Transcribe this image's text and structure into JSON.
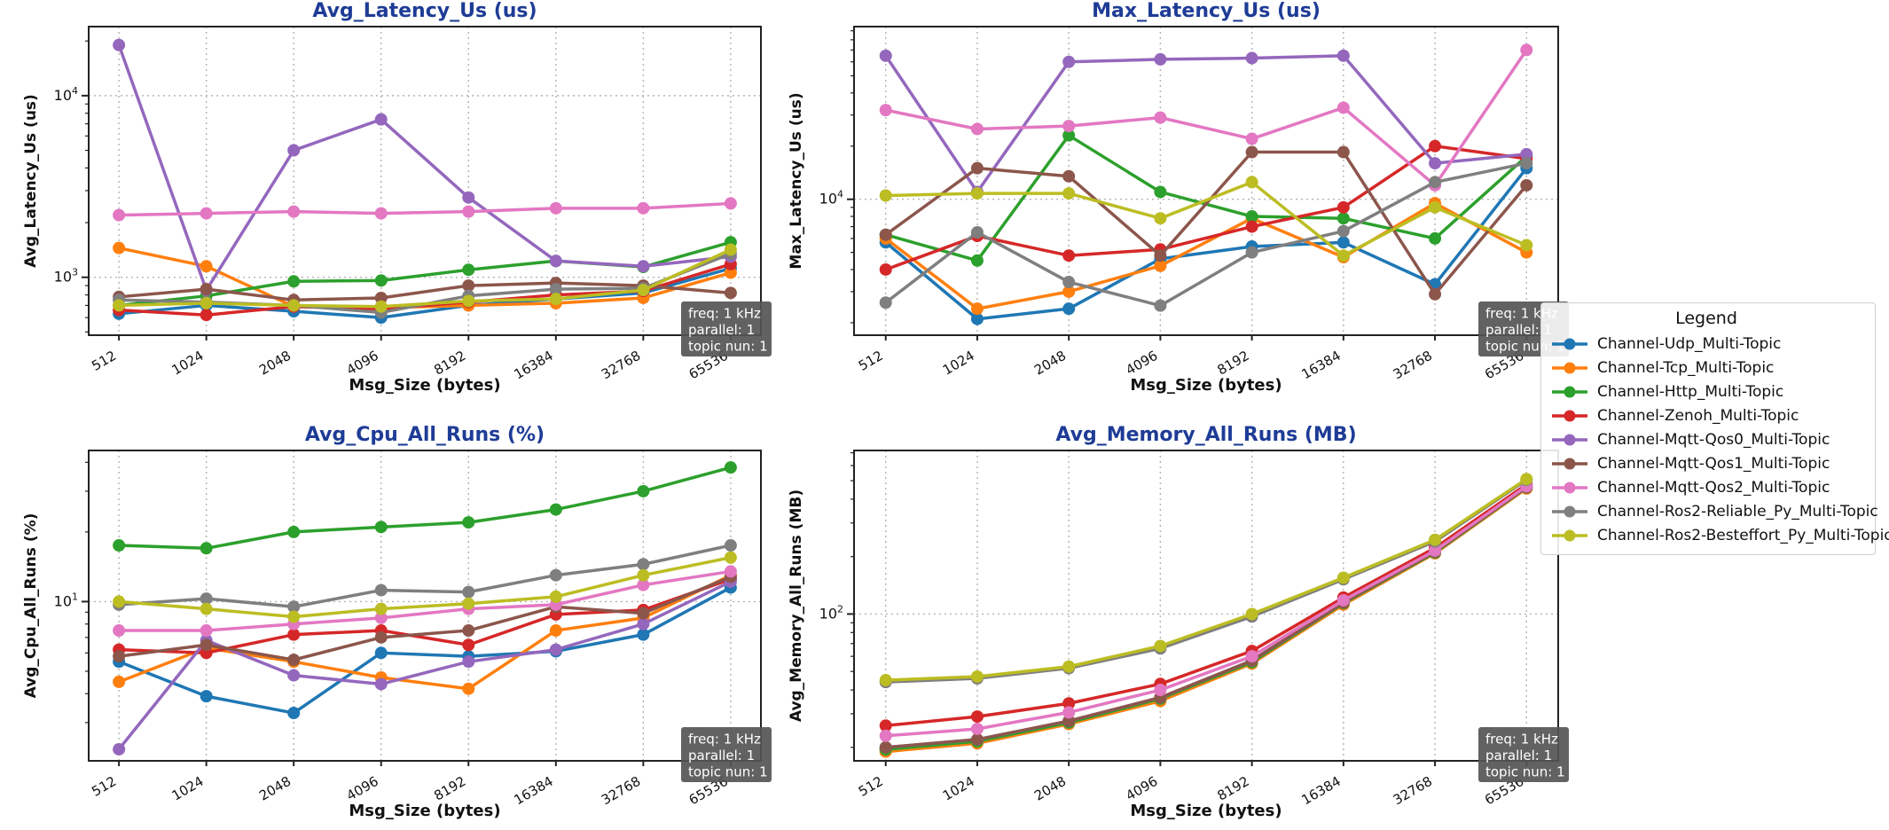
{
  "figure": {
    "background": "#ffffff",
    "title_color": "#1e3c96",
    "grid_color": "#b3b3b3",
    "spine_color": "#222222",
    "info_box": {
      "lines": [
        "freq: 1 kHz",
        "parallel: 1",
        "topic nun: 1"
      ],
      "bg": "#555555",
      "text_color": "#ffffff"
    },
    "legend": {
      "title": "Legend",
      "entries": [
        {
          "label": "Channel-Udp_Multi-Topic",
          "color": "#1f77b4"
        },
        {
          "label": "Channel-Tcp_Multi-Topic",
          "color": "#ff7f0e"
        },
        {
          "label": "Channel-Http_Multi-Topic",
          "color": "#2ca02c"
        },
        {
          "label": "Channel-Zenoh_Multi-Topic",
          "color": "#d62728"
        },
        {
          "label": "Channel-Mqtt-Qos0_Multi-Topic",
          "color": "#9467bd"
        },
        {
          "label": "Channel-Mqtt-Qos1_Multi-Topic",
          "color": "#8c564b"
        },
        {
          "label": "Channel-Mqtt-Qos2_Multi-Topic",
          "color": "#e377c2"
        },
        {
          "label": "Channel-Ros2-Reliable_Py_Multi-Topic",
          "color": "#7f7f7f"
        },
        {
          "label": "Channel-Ros2-Besteffort_Py_Multi-Topic",
          "color": "#bcbd22"
        }
      ]
    }
  },
  "chart_data": [
    {
      "type": "line",
      "title": "Avg_Latency_Us  (us)",
      "xlabel": "Msg_Size (bytes)",
      "ylabel": "Avg_Latency_Us (us)",
      "x_categories": [
        "512",
        "1024",
        "2048",
        "4096",
        "8192",
        "16384",
        "32768",
        "65536"
      ],
      "yscale": "log",
      "ylim": [
        480,
        24000
      ],
      "y_major_ticks": [
        1000,
        10000
      ],
      "grid": true,
      "legend_position": "outside-right",
      "series": [
        {
          "name": "Channel-Udp_Multi-Topic",
          "color": "#1f77b4",
          "values": [
            630,
            700,
            650,
            600,
            700,
            760,
            820,
            1120
          ]
        },
        {
          "name": "Channel-Tcp_Multi-Topic",
          "color": "#ff7f0e",
          "values": [
            1450,
            1150,
            690,
            680,
            700,
            720,
            770,
            1060
          ]
        },
        {
          "name": "Channel-Http_Multi-Topic",
          "color": "#2ca02c",
          "values": [
            700,
            790,
            950,
            960,
            1100,
            1230,
            1140,
            1560
          ]
        },
        {
          "name": "Channel-Zenoh_Multi-Topic",
          "color": "#d62728",
          "values": [
            660,
            620,
            690,
            670,
            730,
            800,
            840,
            1180
          ]
        },
        {
          "name": "Channel-Mqtt-Qos0_Multi-Topic",
          "color": "#9467bd",
          "values": [
            19000,
            850,
            5000,
            7400,
            2750,
            1230,
            1150,
            1300
          ]
        },
        {
          "name": "Channel-Mqtt-Qos1_Multi-Topic",
          "color": "#8c564b",
          "values": [
            780,
            860,
            750,
            770,
            900,
            930,
            900,
            820
          ]
        },
        {
          "name": "Channel-Mqtt-Qos2_Multi-Topic",
          "color": "#e377c2",
          "values": [
            2200,
            2250,
            2300,
            2250,
            2300,
            2400,
            2400,
            2550
          ]
        },
        {
          "name": "Channel-Ros2-Reliable_Py_Multi-Topic",
          "color": "#7f7f7f",
          "values": [
            750,
            730,
            700,
            640,
            790,
            860,
            870,
            1350
          ]
        },
        {
          "name": "Channel-Ros2-Besteffort_Py_Multi-Topic",
          "color": "#bcbd22",
          "values": [
            700,
            720,
            700,
            690,
            740,
            760,
            850,
            1420
          ]
        }
      ]
    },
    {
      "type": "line",
      "title": "Max_Latency_Us  (us)",
      "xlabel": "Msg_Size (bytes)",
      "ylabel": "Max_Latency_Us (us)",
      "x_categories": [
        "512",
        "1024",
        "2048",
        "4096",
        "8192",
        "16384",
        "32768",
        "65536"
      ],
      "yscale": "log",
      "ylim": [
        1700,
        95000
      ],
      "y_major_ticks": [
        10000
      ],
      "grid": true,
      "series": [
        {
          "name": "Channel-Udp_Multi-Topic",
          "color": "#1f77b4",
          "values": [
            5700,
            2100,
            2400,
            4600,
            5400,
            5700,
            3300,
            15000
          ]
        },
        {
          "name": "Channel-Tcp_Multi-Topic",
          "color": "#ff7f0e",
          "values": [
            6000,
            2400,
            3000,
            4200,
            7800,
            4700,
            9500,
            5000
          ]
        },
        {
          "name": "Channel-Http_Multi-Topic",
          "color": "#2ca02c",
          "values": [
            6300,
            4500,
            23000,
            11000,
            8000,
            7800,
            6000,
            17500
          ]
        },
        {
          "name": "Channel-Zenoh_Multi-Topic",
          "color": "#d62728",
          "values": [
            4000,
            6200,
            4800,
            5200,
            7000,
            9000,
            20000,
            17000
          ]
        },
        {
          "name": "Channel-Mqtt-Qos0_Multi-Topic",
          "color": "#9467bd",
          "values": [
            65000,
            11000,
            60000,
            62000,
            63000,
            65000,
            16000,
            18000
          ]
        },
        {
          "name": "Channel-Mqtt-Qos1_Multi-Topic",
          "color": "#8c564b",
          "values": [
            6300,
            15000,
            13500,
            4800,
            18500,
            18500,
            2900,
            12000
          ]
        },
        {
          "name": "Channel-Mqtt-Qos2_Multi-Topic",
          "color": "#e377c2",
          "values": [
            32000,
            25000,
            26000,
            29000,
            22000,
            33000,
            12000,
            70000
          ]
        },
        {
          "name": "Channel-Ros2-Reliable_Py_Multi-Topic",
          "color": "#7f7f7f",
          "values": [
            2600,
            6500,
            3400,
            2500,
            5000,
            6600,
            12500,
            16000
          ]
        },
        {
          "name": "Channel-Ros2-Besteffort_Py_Multi-Topic",
          "color": "#bcbd22",
          "values": [
            10500,
            10800,
            10800,
            7800,
            12500,
            4800,
            9000,
            5500
          ]
        }
      ]
    },
    {
      "type": "line",
      "title": "Avg_Cpu_All_Runs  (%)",
      "xlabel": "Msg_Size (bytes)",
      "ylabel": "Avg_Cpu_All_Runs (%)",
      "x_categories": [
        "512",
        "1024",
        "2048",
        "4096",
        "8192",
        "16384",
        "32768",
        "65536"
      ],
      "yscale": "log",
      "ylim": [
        2.05,
        45
      ],
      "y_major_ticks": [
        10
      ],
      "grid": true,
      "series": [
        {
          "name": "Channel-Udp_Multi-Topic",
          "color": "#1f77b4",
          "values": [
            5.5,
            3.9,
            3.3,
            6.0,
            5.8,
            6.1,
            7.2,
            11.5
          ]
        },
        {
          "name": "Channel-Tcp_Multi-Topic",
          "color": "#ff7f0e",
          "values": [
            4.5,
            6.3,
            5.5,
            4.7,
            4.2,
            7.5,
            8.5,
            13
          ]
        },
        {
          "name": "Channel-Http_Multi-Topic",
          "color": "#2ca02c",
          "values": [
            17.5,
            17,
            20,
            21,
            22,
            25,
            30,
            38
          ]
        },
        {
          "name": "Channel-Zenoh_Multi-Topic",
          "color": "#d62728",
          "values": [
            6.2,
            6.0,
            7.2,
            7.5,
            6.5,
            8.8,
            9.2,
            12.5
          ]
        },
        {
          "name": "Channel-Mqtt-Qos0_Multi-Topic",
          "color": "#9467bd",
          "values": [
            2.3,
            6.8,
            4.8,
            4.4,
            5.5,
            6.2,
            8.0,
            12.2
          ]
        },
        {
          "name": "Channel-Mqtt-Qos1_Multi-Topic",
          "color": "#8c564b",
          "values": [
            5.8,
            6.5,
            5.6,
            7.0,
            7.5,
            9.5,
            8.9,
            12.8
          ]
        },
        {
          "name": "Channel-Mqtt-Qos2_Multi-Topic",
          "color": "#e377c2",
          "values": [
            7.5,
            7.5,
            8.0,
            8.5,
            9.3,
            9.7,
            11.8,
            13.5
          ]
        },
        {
          "name": "Channel-Ros2-Reliable_Py_Multi-Topic",
          "color": "#7f7f7f",
          "values": [
            9.7,
            10.3,
            9.5,
            11.2,
            11.0,
            13.0,
            14.5,
            17.5
          ]
        },
        {
          "name": "Channel-Ros2-Besteffort_Py_Multi-Topic",
          "color": "#bcbd22",
          "values": [
            10.0,
            9.3,
            8.6,
            9.3,
            9.8,
            10.5,
            13.0,
            15.5
          ]
        }
      ]
    },
    {
      "type": "line",
      "title": "Avg_Memory_All_Runs  (MB)",
      "xlabel": "Msg_Size (bytes)",
      "ylabel": "Avg_Memory_All_Runs (MB)",
      "x_categories": [
        "512",
        "1024",
        "2048",
        "4096",
        "8192",
        "16384",
        "32768",
        "65536"
      ],
      "yscale": "log",
      "ylim": [
        17,
        720
      ],
      "y_major_ticks": [
        100
      ],
      "grid": true,
      "series": [
        {
          "name": "Channel-Udp_Multi-Topic",
          "color": "#1f77b4",
          "values": [
            19.5,
            21.5,
            27,
            36,
            57,
            115,
            212,
            462
          ]
        },
        {
          "name": "Channel-Tcp_Multi-Topic",
          "color": "#ff7f0e",
          "values": [
            19,
            21,
            26.5,
            35,
            55,
            112,
            208,
            455
          ]
        },
        {
          "name": "Channel-Http_Multi-Topic",
          "color": "#2ca02c",
          "values": [
            19.5,
            21.5,
            27,
            36,
            56,
            114,
            210,
            460
          ]
        },
        {
          "name": "Channel-Zenoh_Multi-Topic",
          "color": "#d62728",
          "values": [
            26,
            29,
            34,
            43,
            64,
            122,
            222,
            478
          ]
        },
        {
          "name": "Channel-Mqtt-Qos0_Multi-Topic",
          "color": "#9467bd",
          "values": [
            20,
            22,
            27.5,
            36.5,
            57,
            115,
            212,
            462
          ]
        },
        {
          "name": "Channel-Mqtt-Qos1_Multi-Topic",
          "color": "#8c564b",
          "values": [
            20,
            22,
            27.5,
            36.5,
            57,
            115,
            212,
            462
          ]
        },
        {
          "name": "Channel-Mqtt-Qos2_Multi-Topic",
          "color": "#e377c2",
          "values": [
            23,
            25,
            30.5,
            40,
            60,
            118,
            215,
            468
          ]
        },
        {
          "name": "Channel-Ros2-Reliable_Py_Multi-Topic",
          "color": "#7f7f7f",
          "values": [
            44,
            46,
            52,
            66,
            97,
            152,
            240,
            505
          ]
        },
        {
          "name": "Channel-Ros2-Besteffort_Py_Multi-Topic",
          "color": "#bcbd22",
          "values": [
            45,
            47,
            53,
            68,
            100,
            155,
            245,
            510
          ]
        }
      ]
    }
  ]
}
